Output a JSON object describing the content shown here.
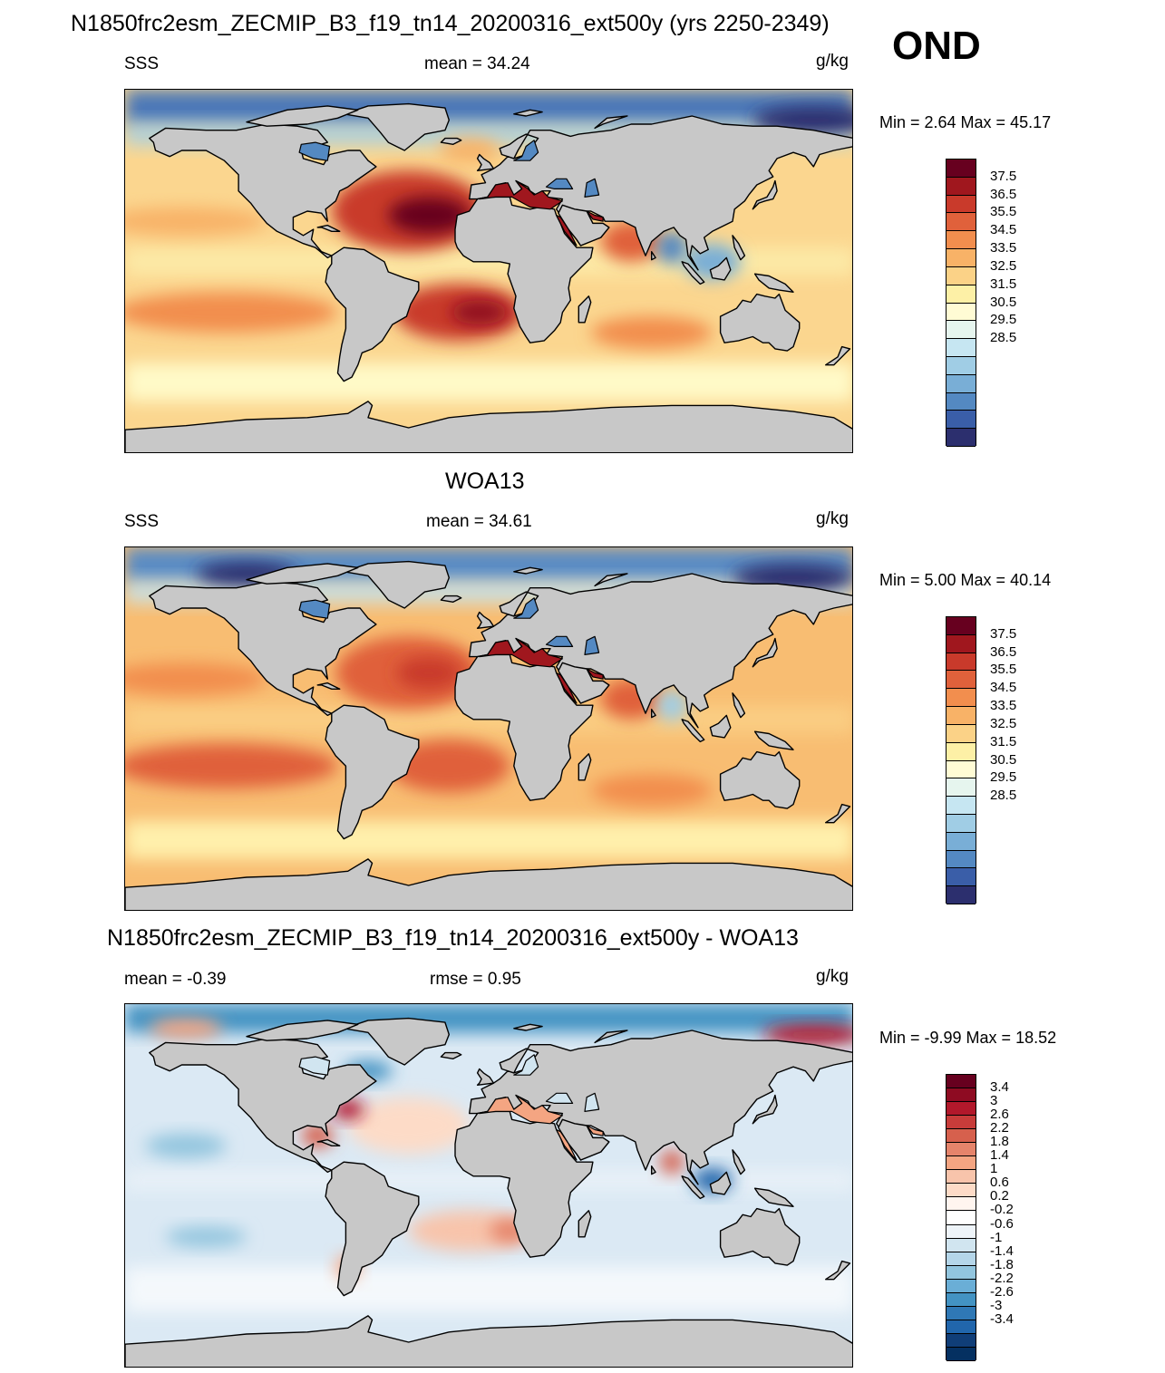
{
  "figure": {
    "title": "N1850frc2esm_ZECMIP_B3_f19_tn14_20200316_ext500y (yrs 2250-2349)",
    "season": "OND"
  },
  "panels": [
    {
      "id": "model",
      "title": "",
      "left_label": "SSS",
      "center_label": "mean =  34.24",
      "units": "g/kg",
      "minmax": "Min =   2.64 Max =  45.17",
      "colorbar": {
        "ticks": [
          "37.5",
          "36.5",
          "35.5",
          "34.5",
          "33.5",
          "32.5",
          "31.5",
          "30.5",
          "29.5",
          "28.5"
        ],
        "colors": [
          "#67001f",
          "#a0171e",
          "#c93a2b",
          "#e0613b",
          "#f28e4e",
          "#f8b267",
          "#fbd287",
          "#fdf0a6",
          "#fffbd4",
          "#e6f5ee",
          "#c6e6f2",
          "#a0cde5",
          "#79aed6",
          "#5489c2",
          "#3a5ea8",
          "#2c2f6e"
        ]
      },
      "field_style": "model"
    },
    {
      "id": "obs",
      "title": "WOA13",
      "left_label": "SSS",
      "center_label": "mean =  34.61",
      "units": "g/kg",
      "minmax": "Min =   5.00 Max =  40.14",
      "colorbar": {
        "ticks": [
          "37.5",
          "36.5",
          "35.5",
          "34.5",
          "33.5",
          "32.5",
          "31.5",
          "30.5",
          "29.5",
          "28.5"
        ],
        "colors": [
          "#67001f",
          "#a0171e",
          "#c93a2b",
          "#e0613b",
          "#f28e4e",
          "#f8b267",
          "#fbd287",
          "#fdf0a6",
          "#fffbd4",
          "#e6f5ee",
          "#c6e6f2",
          "#a0cde5",
          "#79aed6",
          "#5489c2",
          "#3a5ea8",
          "#2c2f6e"
        ]
      },
      "field_style": "obs"
    },
    {
      "id": "diff",
      "title": "N1850frc2esm_ZECMIP_B3_f19_tn14_20200316_ext500y - WOA13",
      "left_label": "mean =  -0.39",
      "center_label": "rmse =   0.95",
      "units": "g/kg",
      "minmax": "Min =  -9.99 Max =  18.52",
      "colorbar": {
        "ticks": [
          "3.4",
          "3",
          "2.6",
          "2.2",
          "1.8",
          "1.4",
          "1",
          "0.6",
          "0.2",
          "-0.2",
          "-0.6",
          "-1",
          "-1.4",
          "-1.8",
          "-2.2",
          "-2.6",
          "-3",
          "-3.4"
        ],
        "colors": [
          "#67001f",
          "#8e0b22",
          "#b2182b",
          "#c83c3a",
          "#d6604d",
          "#e5846b",
          "#f4a582",
          "#f8c4ab",
          "#fddbc7",
          "#fff5ef",
          "#ffffff",
          "#eef4f9",
          "#d1e5f0",
          "#b5d6e9",
          "#92c5de",
          "#6aaed6",
          "#4393c3",
          "#2f78b5",
          "#2166ac",
          "#103e78",
          "#053061"
        ]
      },
      "field_style": "diff"
    }
  ]
}
